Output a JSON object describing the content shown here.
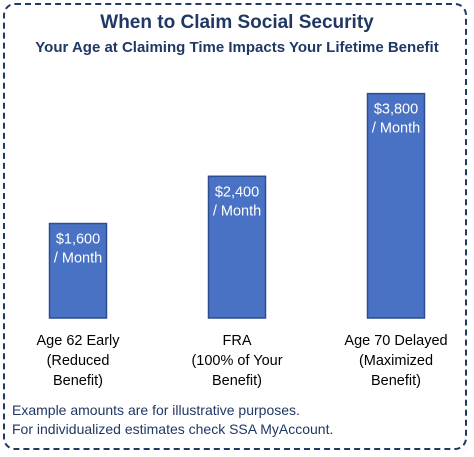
{
  "chart_data": {
    "type": "bar",
    "title": "When to Claim Social Security",
    "subtitle": "Your Age at Claiming Time Impacts Your Lifetime Benefit",
    "categories": [
      [
        "Age 62 Early",
        "(Reduced",
        "Benefit)"
      ],
      [
        "FRA",
        "(100% of Your",
        "Benefit)"
      ],
      [
        "Age 70 Delayed",
        "(Maximized",
        "Benefit)"
      ]
    ],
    "values": [
      1600,
      2400,
      3800
    ],
    "data_labels": [
      [
        "$1,600",
        "/ Month"
      ],
      [
        "$2,400",
        "/ Month"
      ],
      [
        "$3,800",
        "/ Month"
      ]
    ],
    "ylim": [
      0,
      4200
    ],
    "grid": false,
    "colors": {
      "bar": "#4a72c4",
      "bar_border": "#2c4d8f",
      "text": "#1f3864"
    }
  },
  "footnotes": [
    "Example amounts are for illustrative purposes.",
    "For individualized estimates check SSA MyAccount."
  ]
}
